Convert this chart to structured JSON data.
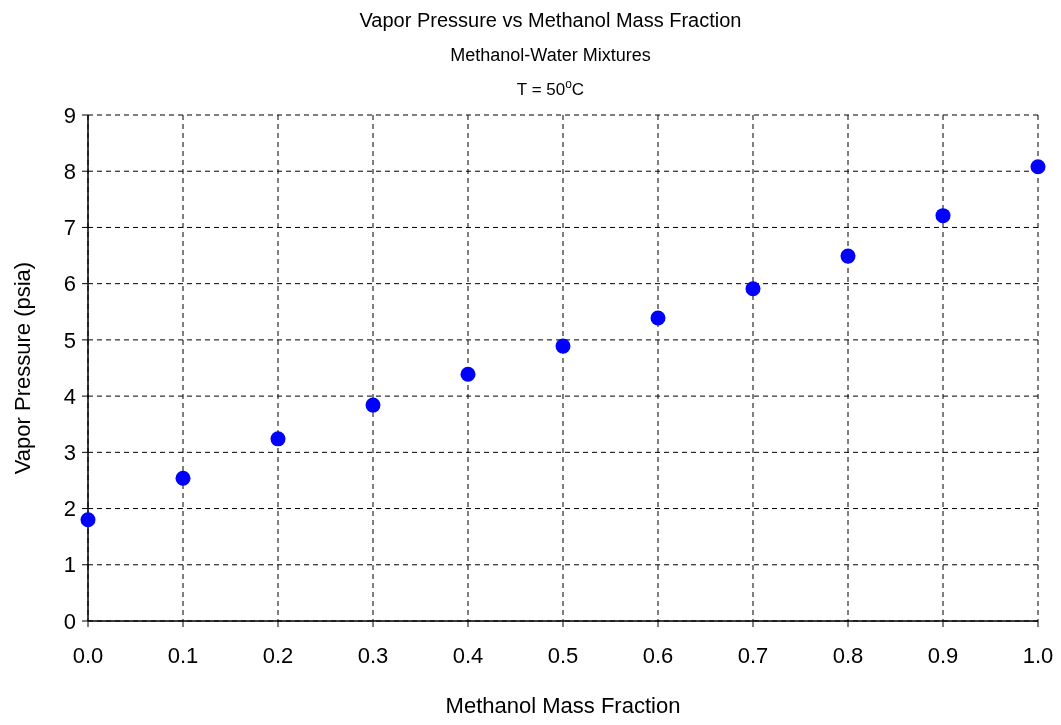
{
  "chart_data": {
    "type": "scatter",
    "title": "Vapor Pressure vs Methanol Mass Fraction",
    "subtitle": "Methanol-Water Mixtures",
    "annotations": [
      "T = 50$^{o}$C"
    ],
    "xlabel": "Methanol Mass Fraction",
    "ylabel": "Vapor Pressure (psia)",
    "x": [
      0,
      0.1,
      0.2,
      0.3,
      0.4,
      0.5,
      0.6,
      0.7,
      0.8,
      0.9,
      1.0
    ],
    "series": [
      {
        "color": "#0000ff",
        "values": [
          1.8,
          2.54,
          3.24,
          3.84,
          4.39,
          4.89,
          5.39,
          5.91,
          6.49,
          7.21,
          8.08
        ]
      }
    ],
    "xlim": [
      0,
      1
    ],
    "xticks": [
      {
        "value": 0,
        "label": "0.0"
      },
      {
        "value": 0.1,
        "label": "0.1"
      },
      {
        "value": 0.2,
        "label": "0.2"
      },
      {
        "value": 0.3,
        "label": "0.3"
      },
      {
        "value": 0.4,
        "label": "0.4"
      },
      {
        "value": 0.5,
        "label": "0.5"
      },
      {
        "value": 0.6,
        "label": "0.6"
      },
      {
        "value": 0.7,
        "label": "0.7"
      },
      {
        "value": 0.8,
        "label": "0.8"
      },
      {
        "value": 0.9,
        "label": "0.9"
      },
      {
        "value": 1,
        "label": "1.0"
      }
    ],
    "ylim": [
      0,
      9
    ],
    "yticks": [
      0,
      1,
      2,
      3,
      4,
      5,
      6,
      7,
      8,
      9
    ],
    "grid": true,
    "marker": "circle",
    "line_style": "dashed"
  }
}
